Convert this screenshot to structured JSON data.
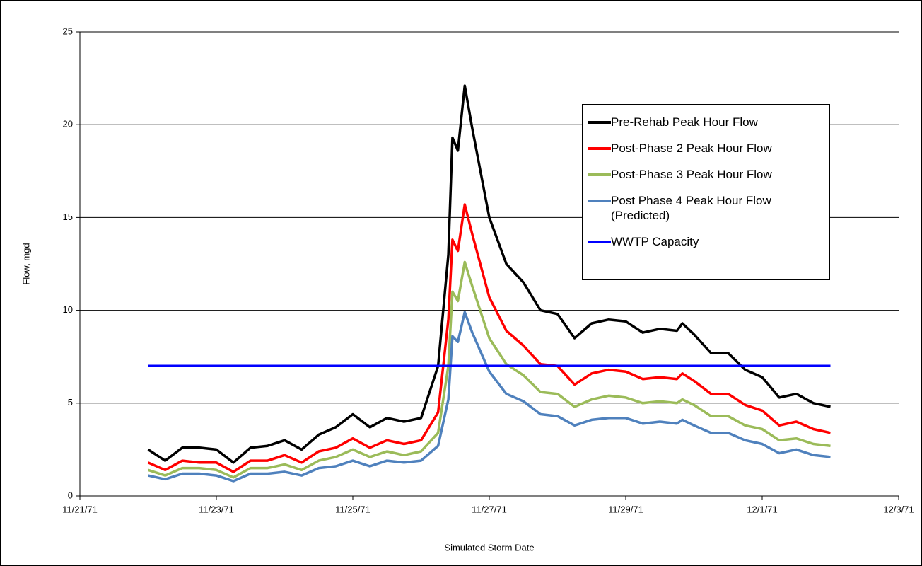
{
  "chart_data": {
    "type": "line",
    "xlabel": "Simulated Storm Date",
    "ylabel": "Flow, mgd",
    "x": [
      26259,
      26259.25,
      26259.5,
      26259.75,
      26260,
      26260.25,
      26260.5,
      26260.75,
      26261,
      26261.25,
      26261.5,
      26261.75,
      26262,
      26262.25,
      26262.5,
      26262.75,
      26263,
      26263.25,
      26263.4,
      26263.46,
      26263.54,
      26263.64,
      26263.75,
      26264,
      26264.25,
      26264.5,
      26264.75,
      26265,
      26265.25,
      26265.5,
      26265.75,
      26266,
      26266.25,
      26266.5,
      26266.75,
      26266.83,
      26267,
      26267.25,
      26267.5,
      26267.75,
      26268,
      26268.25,
      26268.5,
      26268.75,
      26269
    ],
    "series": [
      {
        "name": "Pre-Rehab Peak Hour Flow",
        "color": "#000000",
        "values": [
          2.5,
          1.9,
          2.6,
          2.6,
          2.5,
          1.8,
          2.6,
          2.7,
          3.0,
          2.5,
          3.3,
          3.7,
          4.4,
          3.7,
          4.2,
          4.0,
          4.2,
          7.0,
          13.0,
          19.3,
          18.6,
          22.1,
          19.8,
          15.0,
          12.5,
          11.5,
          10.0,
          9.8,
          8.5,
          9.3,
          9.5,
          9.4,
          8.8,
          9.0,
          8.9,
          9.3,
          8.7,
          7.7,
          7.7,
          6.8,
          6.4,
          5.3,
          5.5,
          5.0,
          4.8
        ]
      },
      {
        "name": "Post-Phase 2 Peak Hour Flow",
        "color": "#ff0000",
        "values": [
          1.8,
          1.4,
          1.9,
          1.8,
          1.8,
          1.3,
          1.9,
          1.9,
          2.2,
          1.8,
          2.4,
          2.6,
          3.1,
          2.6,
          3.0,
          2.8,
          3.0,
          4.5,
          9.5,
          13.8,
          13.2,
          15.7,
          14.1,
          10.7,
          8.9,
          8.1,
          7.1,
          7.0,
          6.0,
          6.6,
          6.8,
          6.7,
          6.3,
          6.4,
          6.3,
          6.6,
          6.2,
          5.5,
          5.5,
          4.9,
          4.6,
          3.8,
          4.0,
          3.6,
          3.4
        ]
      },
      {
        "name": "Post-Phase 3 Peak Hour Flow",
        "color": "#9bbb59",
        "values": [
          1.4,
          1.1,
          1.5,
          1.5,
          1.4,
          1.0,
          1.5,
          1.5,
          1.7,
          1.4,
          1.9,
          2.1,
          2.5,
          2.1,
          2.4,
          2.2,
          2.4,
          3.4,
          7.0,
          11.0,
          10.5,
          12.6,
          11.3,
          8.5,
          7.1,
          6.5,
          5.6,
          5.5,
          4.8,
          5.2,
          5.4,
          5.3,
          5.0,
          5.1,
          5.0,
          5.2,
          4.9,
          4.3,
          4.3,
          3.8,
          3.6,
          3.0,
          3.1,
          2.8,
          2.7
        ]
      },
      {
        "name": "Post Phase 4 Peak Hour Flow (Predicted)",
        "color": "#4f81bd",
        "values": [
          1.1,
          0.9,
          1.2,
          1.2,
          1.1,
          0.8,
          1.2,
          1.2,
          1.3,
          1.1,
          1.5,
          1.6,
          1.9,
          1.6,
          1.9,
          1.8,
          1.9,
          2.7,
          5.2,
          8.6,
          8.3,
          9.9,
          8.8,
          6.7,
          5.5,
          5.1,
          4.4,
          4.3,
          3.8,
          4.1,
          4.2,
          4.2,
          3.9,
          4.0,
          3.9,
          4.1,
          3.8,
          3.4,
          3.4,
          3.0,
          2.8,
          2.3,
          2.5,
          2.2,
          2.1
        ]
      },
      {
        "name": "WWTP Capacity",
        "color": "#0000ff",
        "x": [
          26259,
          26269
        ],
        "values": [
          7,
          7
        ]
      }
    ],
    "xlim": [
      26258,
      26270
    ],
    "xticks": [
      {
        "value": 26258,
        "label": "11/21/71"
      },
      {
        "value": 26260,
        "label": "11/23/71"
      },
      {
        "value": 26262,
        "label": "11/25/71"
      },
      {
        "value": 26264,
        "label": "11/27/71"
      },
      {
        "value": 26266,
        "label": "11/29/71"
      },
      {
        "value": 26268,
        "label": "12/1/71"
      },
      {
        "value": 26270,
        "label": "12/3/71"
      }
    ],
    "ylim": [
      0,
      25
    ],
    "yticks": [
      0,
      5,
      10,
      15,
      20,
      25
    ],
    "grid": true
  }
}
